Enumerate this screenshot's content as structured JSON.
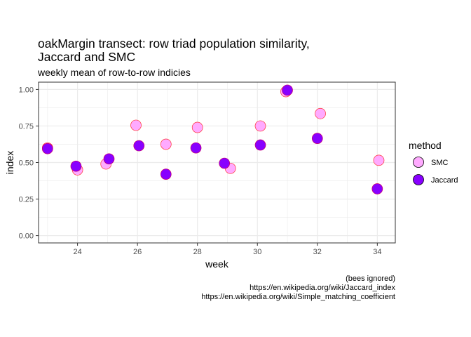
{
  "chart_data": {
    "type": "scatter",
    "title_line1": "oakMargin transect: row triad population similarity,",
    "title_line2": "Jaccard and SMC",
    "subtitle": "weekly mean of row-to-row indicies",
    "xlabel": "week",
    "ylabel": "index",
    "xlim": [
      22.7,
      34.6
    ],
    "ylim": [
      -0.05,
      1.05
    ],
    "x_ticks": [
      24,
      26,
      28,
      30,
      32,
      34
    ],
    "x_tick_labels": [
      "24",
      "26",
      "28",
      "30",
      "32",
      "34"
    ],
    "y_ticks": [
      0,
      0.25,
      0.5,
      0.75,
      1
    ],
    "y_tick_labels": [
      "0.00",
      "0.25",
      "0.50",
      "0.75",
      "1.00"
    ],
    "grid": true,
    "legend": {
      "title": "method",
      "placement": "right",
      "entries": [
        "SMC",
        "Jaccard"
      ]
    },
    "series": [
      {
        "name": "SMC",
        "fill": "#ffaaff",
        "stroke": "#ff3333",
        "points": [
          {
            "x": 23.0,
            "y": 0.6
          },
          {
            "x": 24.0,
            "y": 0.45
          },
          {
            "x": 24.95,
            "y": 0.49
          },
          {
            "x": 25.95,
            "y": 0.755
          },
          {
            "x": 26.95,
            "y": 0.625
          },
          {
            "x": 28.0,
            "y": 0.74
          },
          {
            "x": 29.1,
            "y": 0.46
          },
          {
            "x": 30.1,
            "y": 0.75
          },
          {
            "x": 30.95,
            "y": 0.985
          },
          {
            "x": 32.1,
            "y": 0.835
          },
          {
            "x": 34.05,
            "y": 0.515
          }
        ]
      },
      {
        "name": "Jaccard",
        "fill": "#8800ff",
        "stroke": "#cc0066",
        "points": [
          {
            "x": 23.0,
            "y": 0.595
          },
          {
            "x": 23.95,
            "y": 0.475
          },
          {
            "x": 25.05,
            "y": 0.525
          },
          {
            "x": 26.05,
            "y": 0.615
          },
          {
            "x": 26.95,
            "y": 0.42
          },
          {
            "x": 27.95,
            "y": 0.6
          },
          {
            "x": 28.9,
            "y": 0.495
          },
          {
            "x": 30.1,
            "y": 0.62
          },
          {
            "x": 31.0,
            "y": 0.995
          },
          {
            "x": 32.0,
            "y": 0.665
          },
          {
            "x": 34.0,
            "y": 0.32
          }
        ]
      }
    ],
    "caption": [
      "(bees ignored)",
      "https://en.wikipedia.org/wiki/Jaccard_index",
      "https://en.wikipedia.org/wiki/Simple_matching_coefficient"
    ]
  }
}
